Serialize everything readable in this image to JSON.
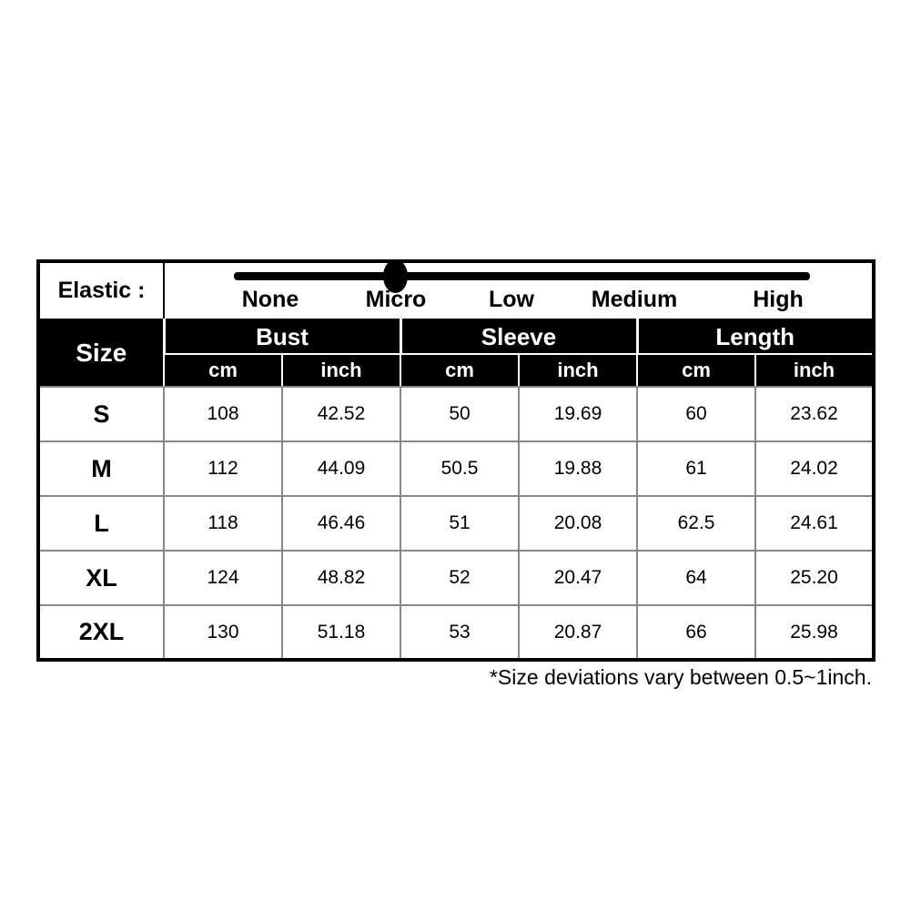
{
  "elastic": {
    "label": "Elastic :",
    "levels": [
      "None",
      "Micro",
      "Low",
      "Medium",
      "High"
    ],
    "selected": "Micro",
    "selected_index": 1,
    "track_color": "#000000"
  },
  "size_table": {
    "corner_header": "Size",
    "group_headers": [
      "Bust",
      "Sleeve",
      "Length"
    ],
    "unit_headers": [
      "cm",
      "inch",
      "cm",
      "inch",
      "cm",
      "inch"
    ],
    "rows": [
      {
        "size": "S",
        "values": [
          "108",
          "42.52",
          "50",
          "19.69",
          "60",
          "23.62"
        ]
      },
      {
        "size": "M",
        "values": [
          "112",
          "44.09",
          "50.5",
          "19.88",
          "61",
          "24.02"
        ]
      },
      {
        "size": "L",
        "values": [
          "118",
          "46.46",
          "51",
          "20.08",
          "62.5",
          "24.61"
        ]
      },
      {
        "size": "XL",
        "values": [
          "124",
          "48.82",
          "52",
          "20.47",
          "64",
          "25.20"
        ]
      },
      {
        "size": "2XL",
        "values": [
          "130",
          "51.18",
          "53",
          "20.87",
          "66",
          "25.98"
        ]
      }
    ],
    "header_bg": "#000000",
    "header_text_color": "#ffffff",
    "grid_color": "#888888"
  },
  "footnote": "*Size deviations vary between 0.5~1inch.",
  "chart_data": {
    "type": "table",
    "title": "Garment size chart",
    "columns": [
      "Size",
      "Bust cm",
      "Bust inch",
      "Sleeve cm",
      "Sleeve inch",
      "Length cm",
      "Length inch"
    ],
    "rows": [
      [
        "S",
        108,
        42.52,
        50,
        19.69,
        60,
        23.62
      ],
      [
        "M",
        112,
        44.09,
        50.5,
        19.88,
        61,
        24.02
      ],
      [
        "L",
        118,
        46.46,
        51,
        20.08,
        62.5,
        24.61
      ],
      [
        "XL",
        124,
        48.82,
        52,
        20.47,
        64,
        25.2
      ],
      [
        "2XL",
        130,
        51.18,
        53,
        20.87,
        66,
        25.98
      ]
    ],
    "elastic_scale": {
      "levels": [
        "None",
        "Micro",
        "Low",
        "Medium",
        "High"
      ],
      "selected": "Micro"
    },
    "footnote": "*Size deviations vary between 0.5~1inch."
  }
}
